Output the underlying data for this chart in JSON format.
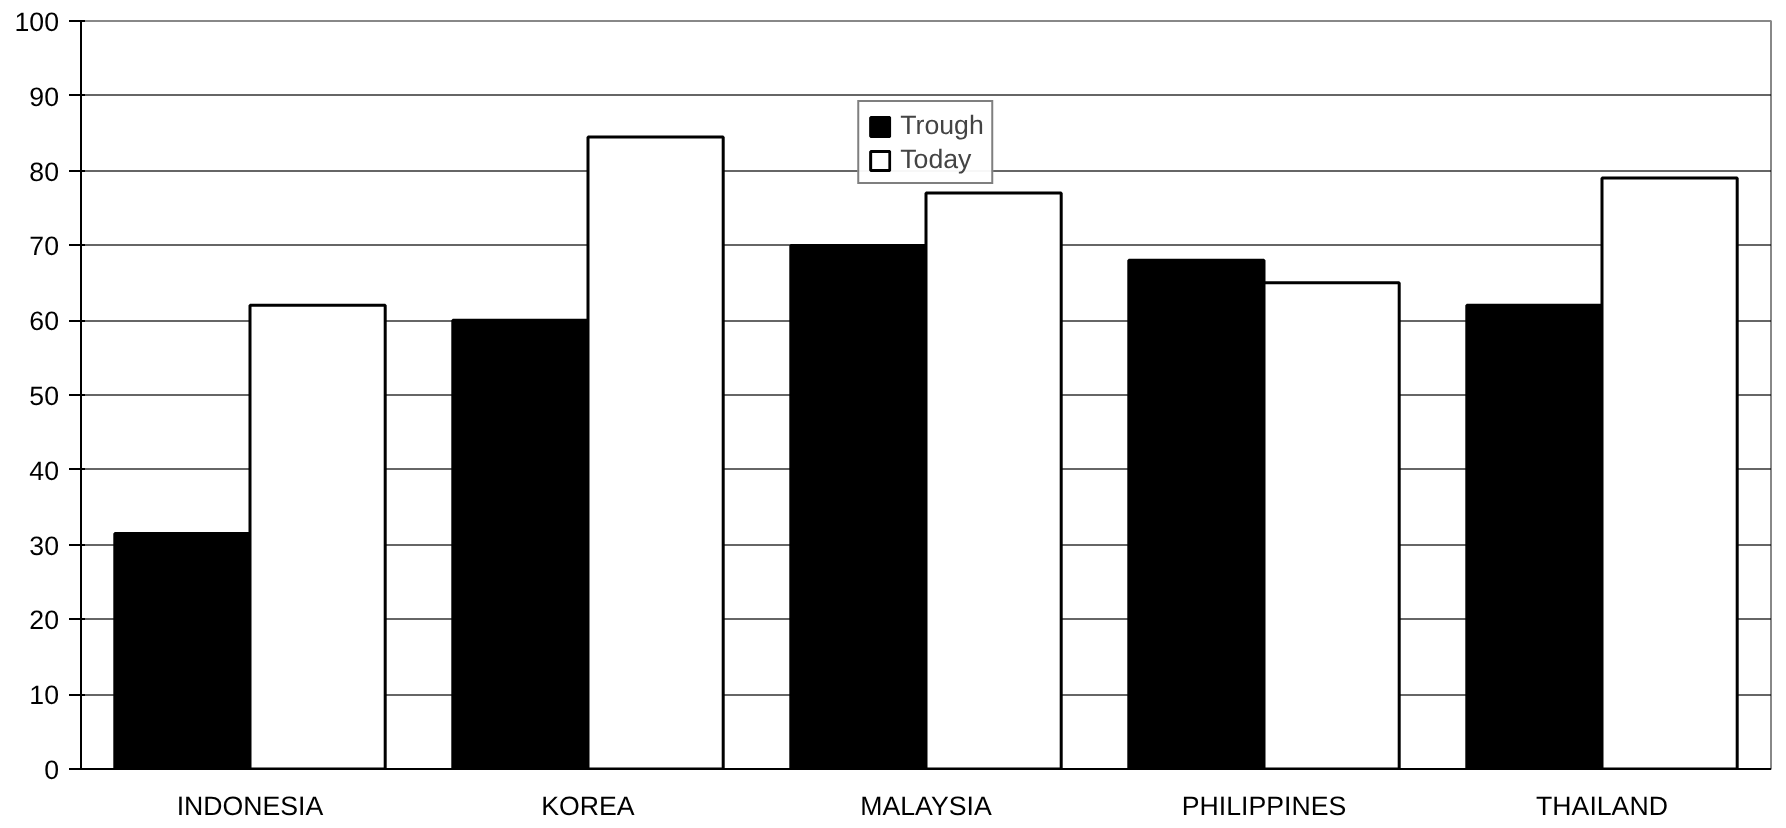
{
  "chart_data": {
    "type": "bar",
    "categories": [
      "INDONESIA",
      "KOREA",
      "MALAYSIA",
      "PHILIPPINES",
      "THAILAND"
    ],
    "series": [
      {
        "name": "Trough",
        "color": "#000000",
        "values": [
          31.5,
          60,
          70,
          68,
          62
        ]
      },
      {
        "name": "Today",
        "color": "#ffffff",
        "values": [
          62,
          84.5,
          77,
          65,
          79
        ]
      }
    ],
    "ylim": [
      0,
      100
    ],
    "yticks": [
      0,
      10,
      20,
      30,
      40,
      50,
      60,
      70,
      80,
      90,
      100
    ],
    "grid": "y",
    "legend": "top"
  }
}
